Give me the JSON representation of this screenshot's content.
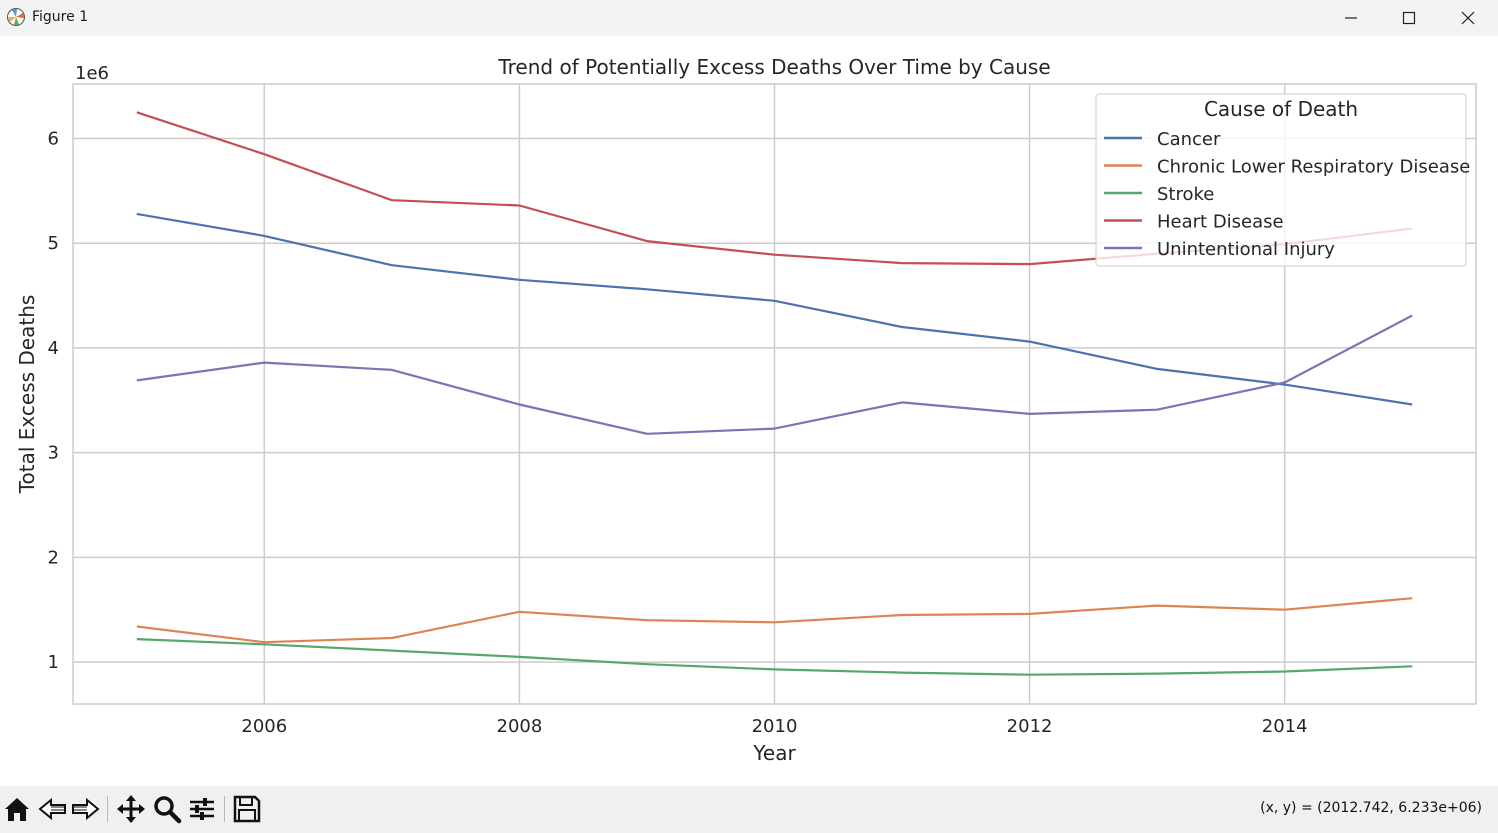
{
  "window": {
    "title": "Figure 1"
  },
  "toolbar": {
    "buttons": [
      "home-icon",
      "back-icon",
      "forward-icon",
      "pan-icon",
      "zoom-icon",
      "configure-icon",
      "save-icon"
    ],
    "coords_text": "(x, y) = (2012.742, 6.233e+06)"
  },
  "chart_data": {
    "type": "line",
    "title": "Trend of Potentially Excess Deaths Over Time by Cause",
    "xlabel": "Year",
    "ylabel": "Total Excess Deaths",
    "y_offset_text": "1e6",
    "xlim": [
      2004.5,
      2015.5
    ],
    "ylim": [
      0.6,
      6.52
    ],
    "xticks": [
      2006,
      2008,
      2010,
      2012,
      2014
    ],
    "yticks": [
      1,
      2,
      3,
      4,
      5,
      6
    ],
    "grid": true,
    "legend": {
      "title": "Cause of Death",
      "placement": "top-right"
    },
    "x": [
      2005,
      2006,
      2007,
      2008,
      2009,
      2010,
      2011,
      2012,
      2013,
      2014,
      2015
    ],
    "series": [
      {
        "name": "Cancer",
        "color": "#4c72b0",
        "values": [
          5.28,
          5.07,
          4.79,
          4.65,
          4.56,
          4.45,
          4.2,
          4.06,
          3.8,
          3.65,
          3.46
        ]
      },
      {
        "name": "Chronic Lower Respiratory Disease",
        "color": "#dd8452",
        "values": [
          1.34,
          1.19,
          1.23,
          1.48,
          1.4,
          1.38,
          1.45,
          1.46,
          1.54,
          1.5,
          1.61
        ]
      },
      {
        "name": "Stroke",
        "color": "#55a868",
        "values": [
          1.22,
          1.17,
          1.11,
          1.05,
          0.98,
          0.93,
          0.9,
          0.88,
          0.89,
          0.91,
          0.96
        ]
      },
      {
        "name": "Heart Disease",
        "color": "#c44e52",
        "values": [
          6.25,
          5.85,
          5.41,
          5.36,
          5.02,
          4.89,
          4.81,
          4.8,
          4.9,
          4.99,
          5.14
        ]
      },
      {
        "name": "Unintentional Injury",
        "color": "#8172b3",
        "values": [
          3.69,
          3.86,
          3.79,
          3.46,
          3.18,
          3.23,
          3.48,
          3.37,
          3.41,
          3.67,
          4.31
        ]
      }
    ]
  }
}
